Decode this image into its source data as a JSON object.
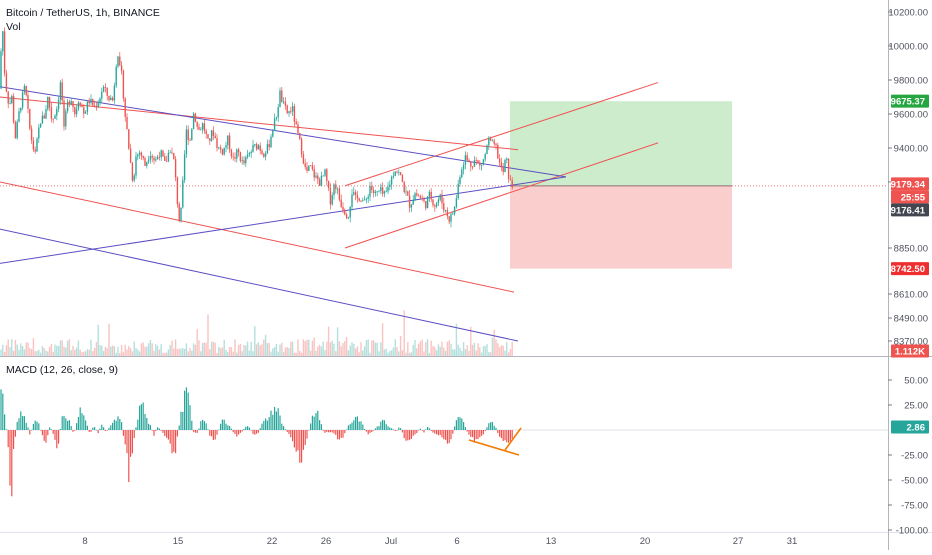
{
  "header": {
    "title": "Bitcoin / TetherUS, 1h, BINANCE",
    "volume_label": "Vol"
  },
  "macd": {
    "label": "MACD (12, 26, close, 9)",
    "current_value": "2.86"
  },
  "colors": {
    "up": "#26a69a",
    "down": "#ef5350",
    "trendline_red": "#ef5350",
    "trendline_purple": "#5b4fc2",
    "target_zone": "#c8eac6",
    "stop_zone": "#fbc9c9",
    "orange_annotation": "#f57c00"
  },
  "chart_data": [
    {
      "type": "candlestick",
      "title": "Bitcoin / TetherUS, 1h, BINANCE",
      "x_tick_labels": [
        "8",
        "15",
        "22",
        "26",
        "Jul",
        "6",
        "13",
        "20",
        "27",
        "31"
      ],
      "y_tick_labels": [
        "10200.00",
        "10000.00",
        "9800.00",
        "9600.00",
        "9400.00",
        "9200.00",
        "8850.00",
        "8610.00",
        "8490.00",
        "8370.00"
      ],
      "ylim": [
        8370,
        10200
      ],
      "price_path": [
        [
          0,
          9750
        ],
        [
          2,
          10190
        ],
        [
          5,
          9800
        ],
        [
          9,
          9650
        ],
        [
          12,
          9700
        ],
        [
          15,
          9450
        ],
        [
          20,
          9640
        ],
        [
          25,
          9760
        ],
        [
          30,
          9500
        ],
        [
          35,
          9350
        ],
        [
          40,
          9560
        ],
        [
          44,
          9580
        ],
        [
          48,
          9700
        ],
        [
          52,
          9560
        ],
        [
          57,
          9640
        ],
        [
          61,
          9800
        ],
        [
          64,
          9500
        ],
        [
          67,
          9650
        ],
        [
          71,
          9700
        ],
        [
          75,
          9600
        ],
        [
          79,
          9700
        ],
        [
          84,
          9600
        ],
        [
          89,
          9680
        ],
        [
          95,
          9640
        ],
        [
          100,
          9700
        ],
        [
          103,
          9760
        ],
        [
          108,
          9700
        ],
        [
          113,
          9680
        ],
        [
          116,
          9900
        ],
        [
          118,
          9960
        ],
        [
          120,
          9850
        ],
        [
          122,
          9820
        ],
        [
          125,
          9600
        ],
        [
          128,
          9450
        ],
        [
          130,
          9340
        ],
        [
          133,
          9200
        ],
        [
          136,
          9350
        ],
        [
          140,
          9380
        ],
        [
          145,
          9300
        ],
        [
          150,
          9380
        ],
        [
          155,
          9320
        ],
        [
          160,
          9380
        ],
        [
          165,
          9300
        ],
        [
          170,
          9400
        ],
        [
          174,
          9320
        ],
        [
          177,
          9120
        ],
        [
          180,
          8960
        ],
        [
          183,
          9200
        ],
        [
          186,
          9500
        ],
        [
          190,
          9450
        ],
        [
          194,
          9620
        ],
        [
          198,
          9500
        ],
        [
          203,
          9540
        ],
        [
          208,
          9430
        ],
        [
          213,
          9500
        ],
        [
          218,
          9400
        ],
        [
          223,
          9380
        ],
        [
          228,
          9450
        ],
        [
          233,
          9330
        ],
        [
          238,
          9380
        ],
        [
          243,
          9300
        ],
        [
          248,
          9350
        ],
        [
          253,
          9400
        ],
        [
          258,
          9420
        ],
        [
          263,
          9370
        ],
        [
          268,
          9400
        ],
        [
          272,
          9500
        ],
        [
          276,
          9580
        ],
        [
          280,
          9720
        ],
        [
          284,
          9640
        ],
        [
          288,
          9600
        ],
        [
          292,
          9640
        ],
        [
          296,
          9520
        ],
        [
          299,
          9450
        ],
        [
          302,
          9380
        ],
        [
          306,
          9250
        ],
        [
          310,
          9290
        ],
        [
          315,
          9230
        ],
        [
          320,
          9200
        ],
        [
          325,
          9250
        ],
        [
          330,
          9100
        ],
        [
          335,
          9200
        ],
        [
          340,
          9100
        ],
        [
          345,
          9050
        ],
        [
          348,
          9020
        ],
        [
          352,
          9150
        ],
        [
          356,
          9100
        ],
        [
          360,
          9130
        ],
        [
          365,
          9080
        ],
        [
          370,
          9180
        ],
        [
          375,
          9130
        ],
        [
          380,
          9150
        ],
        [
          385,
          9120
        ],
        [
          390,
          9200
        ],
        [
          395,
          9280
        ],
        [
          400,
          9240
        ],
        [
          405,
          9150
        ],
        [
          410,
          9080
        ],
        [
          415,
          9140
        ],
        [
          420,
          9120
        ],
        [
          425,
          9080
        ],
        [
          430,
          9130
        ],
        [
          435,
          9080
        ],
        [
          440,
          9120
        ],
        [
          445,
          9050
        ],
        [
          450,
          9000
        ],
        [
          455,
          9070
        ],
        [
          460,
          9250
        ],
        [
          465,
          9350
        ],
        [
          470,
          9300
        ],
        [
          475,
          9330
        ],
        [
          480,
          9290
        ],
        [
          485,
          9350
        ],
        [
          488,
          9450
        ],
        [
          492,
          9420
        ],
        [
          496,
          9400
        ],
        [
          500,
          9300
        ],
        [
          503,
          9250
        ],
        [
          506,
          9350
        ],
        [
          509,
          9220
        ],
        [
          511,
          9180
        ],
        [
          514,
          9179
        ]
      ],
      "current_price": "9179.34",
      "countdown": "25:55",
      "crosshair_price": "9176.41",
      "target_price": "9675.37",
      "stop_price": "8742.50",
      "volume_tag": "1.112K",
      "drawings": {
        "red_lines": [
          [
            [
              0,
              9700
            ],
            [
              518,
              9390
            ]
          ],
          [
            [
              0,
              9200
            ],
            [
              514,
              8620
            ]
          ],
          [
            [
              345,
              9180
            ],
            [
              658,
              9785
            ]
          ],
          [
            [
              345,
              8850
            ],
            [
              658,
              9430
            ]
          ]
        ],
        "purple_lines": [
          [
            [
              0,
              9760
            ],
            [
              566,
              9230
            ]
          ],
          [
            [
              0,
              8770
            ],
            [
              566,
              9230
            ]
          ],
          [
            [
              0,
              8950
            ],
            [
              518,
              8370
            ]
          ]
        ],
        "long_position": {
          "x_start": 510,
          "x_end": 732,
          "entry": 9179.34,
          "target": 9675.37,
          "stop": 8742.5
        }
      }
    },
    {
      "type": "bar",
      "title": "MACD (12, 26, close, 9)",
      "y_tick_labels": [
        "50.00",
        "25.00",
        "0.00",
        "-25.00",
        "-50.00",
        "-75.00",
        "-100.00"
      ],
      "ylim": [
        -100,
        60
      ],
      "current_value": 2.86,
      "histogram_keypoints": [
        [
          0,
          60
        ],
        [
          4,
          20
        ],
        [
          8,
          -12
        ],
        [
          10,
          -45
        ],
        [
          11,
          -95
        ],
        [
          12,
          -60
        ],
        [
          14,
          -15
        ],
        [
          18,
          12
        ],
        [
          22,
          18
        ],
        [
          26,
          10
        ],
        [
          30,
          -5
        ],
        [
          34,
          8
        ],
        [
          38,
          10
        ],
        [
          42,
          -6
        ],
        [
          46,
          -12
        ],
        [
          50,
          5
        ],
        [
          55,
          -10
        ],
        [
          58,
          -20
        ],
        [
          62,
          15
        ],
        [
          66,
          10
        ],
        [
          70,
          8
        ],
        [
          74,
          -5
        ],
        [
          78,
          16
        ],
        [
          82,
          22
        ],
        [
          86,
          8
        ],
        [
          90,
          -4
        ],
        [
          94,
          5
        ],
        [
          98,
          -3
        ],
        [
          102,
          6
        ],
        [
          106,
          -2
        ],
        [
          110,
          4
        ],
        [
          114,
          8
        ],
        [
          118,
          12
        ],
        [
          122,
          6
        ],
        [
          124,
          -10
        ],
        [
          127,
          -22
        ],
        [
          129,
          -45
        ],
        [
          131,
          -30
        ],
        [
          134,
          -8
        ],
        [
          138,
          14
        ],
        [
          142,
          30
        ],
        [
          146,
          12
        ],
        [
          150,
          5
        ],
        [
          154,
          -5
        ],
        [
          158,
          4
        ],
        [
          162,
          -2
        ],
        [
          166,
          -8
        ],
        [
          170,
          -15
        ],
        [
          173,
          -25
        ],
        [
          176,
          -18
        ],
        [
          180,
          10
        ],
        [
          184,
          30
        ],
        [
          187,
          42
        ],
        [
          190,
          20
        ],
        [
          194,
          -4
        ],
        [
          198,
          -2
        ],
        [
          202,
          12
        ],
        [
          206,
          8
        ],
        [
          210,
          -6
        ],
        [
          214,
          -10
        ],
        [
          218,
          -2
        ],
        [
          222,
          10
        ],
        [
          226,
          8
        ],
        [
          230,
          4
        ],
        [
          234,
          -4
        ],
        [
          238,
          -6
        ],
        [
          242,
          -2
        ],
        [
          246,
          4
        ],
        [
          250,
          2
        ],
        [
          254,
          -6
        ],
        [
          258,
          -4
        ],
        [
          262,
          6
        ],
        [
          266,
          10
        ],
        [
          270,
          14
        ],
        [
          274,
          22
        ],
        [
          278,
          20
        ],
        [
          282,
          6
        ],
        [
          286,
          0
        ],
        [
          290,
          -6
        ],
        [
          294,
          -14
        ],
        [
          298,
          -22
        ],
        [
          301,
          -30
        ],
        [
          304,
          -16
        ],
        [
          308,
          -4
        ],
        [
          312,
          14
        ],
        [
          316,
          20
        ],
        [
          320,
          12
        ],
        [
          324,
          -4
        ],
        [
          328,
          -2
        ],
        [
          332,
          -2
        ],
        [
          336,
          -6
        ],
        [
          340,
          -12
        ],
        [
          344,
          -6
        ],
        [
          348,
          4
        ],
        [
          352,
          8
        ],
        [
          356,
          14
        ],
        [
          360,
          10
        ],
        [
          364,
          2
        ],
        [
          368,
          -4
        ],
        [
          372,
          -2
        ],
        [
          376,
          2
        ],
        [
          380,
          6
        ],
        [
          384,
          10
        ],
        [
          388,
          4
        ],
        [
          392,
          2
        ],
        [
          396,
          -2
        ],
        [
          400,
          4
        ],
        [
          404,
          -8
        ],
        [
          408,
          -14
        ],
        [
          412,
          -8
        ],
        [
          416,
          -4
        ],
        [
          420,
          2
        ],
        [
          424,
          -2
        ],
        [
          428,
          4
        ],
        [
          432,
          -2
        ],
        [
          436,
          -4
        ],
        [
          440,
          -6
        ],
        [
          444,
          -8
        ],
        [
          448,
          -14
        ],
        [
          452,
          -6
        ],
        [
          456,
          8
        ],
        [
          460,
          14
        ],
        [
          464,
          6
        ],
        [
          468,
          -4
        ],
        [
          472,
          -8
        ],
        [
          476,
          -12
        ],
        [
          480,
          -6
        ],
        [
          484,
          -4
        ],
        [
          488,
          6
        ],
        [
          492,
          10
        ],
        [
          496,
          2
        ],
        [
          500,
          -8
        ],
        [
          504,
          -12
        ],
        [
          508,
          -16
        ],
        [
          512,
          -8
        ],
        [
          514,
          3
        ]
      ],
      "orange_lines": [
        [
          [
            469,
            -10
          ],
          [
            519,
            -25
          ]
        ],
        [
          [
            505,
            -20
          ],
          [
            521,
            2
          ]
        ]
      ]
    }
  ]
}
